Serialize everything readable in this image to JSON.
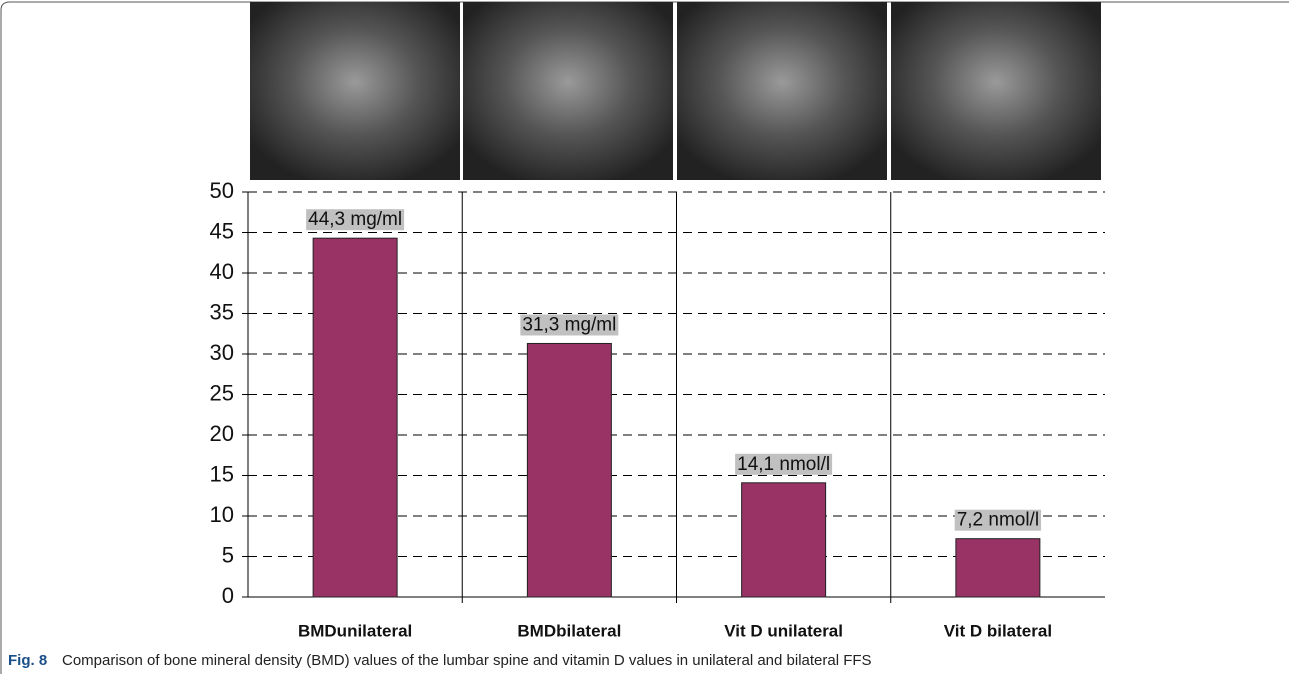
{
  "chart_data": {
    "type": "bar",
    "categories": [
      "BMDunilateral",
      "BMDbilateral",
      "Vit D unilateral",
      "Vit D bilateral"
    ],
    "values": [
      44.3,
      31.3,
      14.1,
      7.2
    ],
    "value_labels": [
      "44,3 mg/ml",
      "31,3 mg/ml",
      "14,1 nmol/l",
      "7,2 nmol/l"
    ],
    "color": "#993366",
    "ylim": [
      0,
      50
    ],
    "yticks": [
      0,
      5,
      10,
      15,
      20,
      25,
      30,
      35,
      40,
      45,
      50
    ],
    "grid": true
  },
  "caption_label": "Fig. 8",
  "caption": "Comparison of bone mineral density (BMD) values of the lumbar spine and vitamin D values in unilateral and bilateral FFS"
}
